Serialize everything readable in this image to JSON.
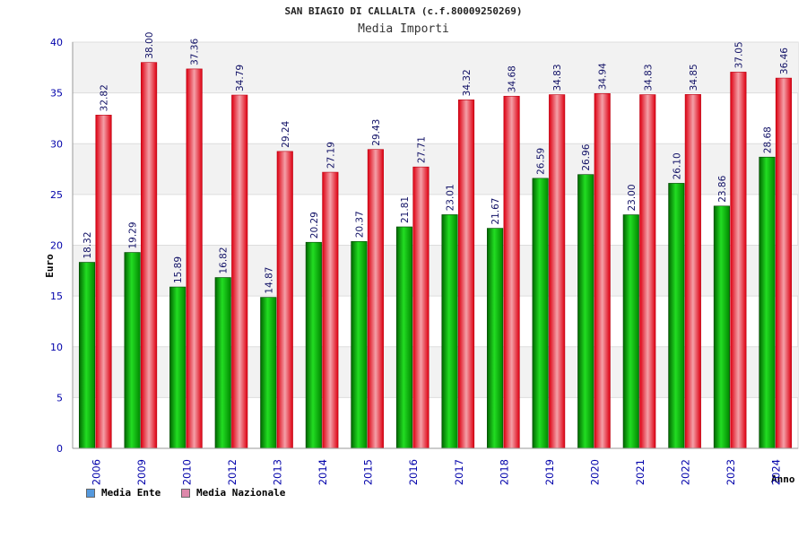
{
  "chart_data": {
    "type": "bar",
    "title": "SAN BIAGIO DI CALLALTA (c.f.80009250269)",
    "subtitle": "Media Importi",
    "xlabel": "Anno",
    "ylabel": "Euro",
    "ylim": [
      0,
      40
    ],
    "yticks": [
      "0",
      "5",
      "10",
      "15",
      "20",
      "25",
      "30",
      "35",
      "40"
    ],
    "categories": [
      "2006",
      "2009",
      "2010",
      "2012",
      "2013",
      "2014",
      "2015",
      "2016",
      "2017",
      "2018",
      "2019",
      "2020",
      "2021",
      "2022",
      "2023",
      "2024"
    ],
    "series": [
      {
        "name": "Media Ente",
        "color": "#00aa00",
        "values": [
          18.32,
          19.29,
          15.89,
          16.82,
          14.87,
          20.29,
          20.37,
          21.81,
          23.01,
          21.67,
          26.59,
          26.96,
          23.0,
          26.1,
          23.86,
          28.68
        ],
        "labels": [
          "18.32",
          "19.29",
          "15.89",
          "16.82",
          "14.87",
          "20.29",
          "20.37",
          "21.81",
          "23.01",
          "21.67",
          "26.59",
          "26.96",
          "23.00",
          "26.10",
          "23.86",
          "28.68"
        ]
      },
      {
        "name": "Media Nazionale",
        "color": "#ee1122",
        "values": [
          32.82,
          38.0,
          37.36,
          34.79,
          29.24,
          27.19,
          29.43,
          27.71,
          34.32,
          34.68,
          34.83,
          34.94,
          34.83,
          34.85,
          37.05,
          36.46
        ],
        "labels": [
          "32.82",
          "38.00",
          "37.36",
          "34.79",
          "29.24",
          "27.19",
          "29.43",
          "27.71",
          "34.32",
          "34.68",
          "34.83",
          "34.94",
          "34.83",
          "34.85",
          "37.05",
          "36.46"
        ]
      }
    ],
    "grid": true,
    "legend_position": "bottom-left",
    "legend_swatch_colors": [
      "#5599dd",
      "#dd88aa"
    ]
  }
}
